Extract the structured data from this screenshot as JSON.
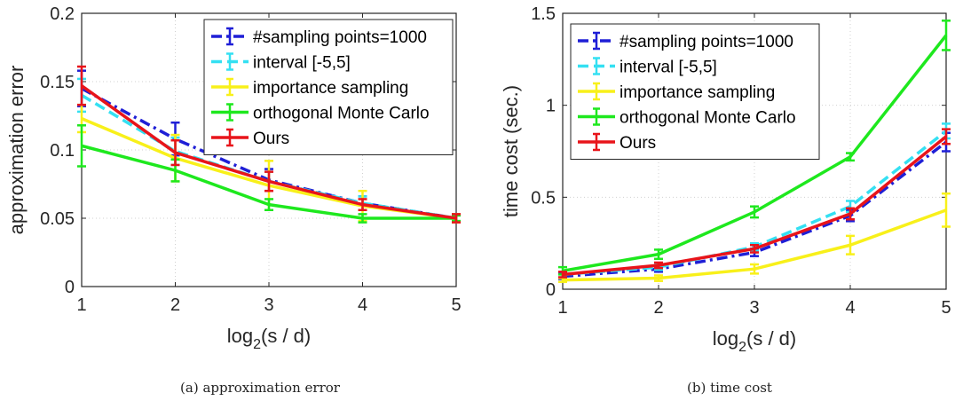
{
  "chart_data": [
    {
      "type": "line",
      "xlabel_base": "log",
      "xlabel_sub": "2",
      "xlabel_rest": "(s / d)",
      "ylabel": "approximation error",
      "caption": "(a)  approximation error",
      "x": [
        1,
        2,
        3,
        4,
        5
      ],
      "xlim": [
        1,
        5
      ],
      "ylim": [
        0,
        0.2
      ],
      "xticks": [
        "1",
        "2",
        "3",
        "4",
        "5"
      ],
      "yticks": [
        "0",
        "0.05",
        "0.1",
        "0.15",
        "0.2"
      ],
      "grid": true,
      "legend_position": "top-right",
      "series": [
        {
          "name": "#sampling points=1000",
          "color": "#1f1fd6",
          "dash": "dashdot",
          "values": [
            0.145,
            0.108,
            0.078,
            0.061,
            0.05
          ],
          "err": [
            0.013,
            0.012,
            0.008,
            0.005,
            0.003
          ]
        },
        {
          "name": "interval [-5,5]",
          "color": "#34e0f2",
          "dash": "dash",
          "values": [
            0.14,
            0.099,
            0.077,
            0.061,
            0.05
          ],
          "err": [
            0.012,
            0.01,
            0.007,
            0.005,
            0.003
          ]
        },
        {
          "name": "importance sampling",
          "color": "#f8f01a",
          "dash": "solid",
          "values": [
            0.123,
            0.094,
            0.074,
            0.059,
            0.05
          ],
          "err": [
            0.01,
            0.017,
            0.018,
            0.011,
            0.003
          ]
        },
        {
          "name": "orthogonal Monte Carlo",
          "color": "#1ee81e",
          "dash": "solid",
          "values": [
            0.103,
            0.085,
            0.06,
            0.05,
            0.05
          ],
          "err": [
            0.015,
            0.008,
            0.004,
            0.003,
            0.002
          ]
        },
        {
          "name": "Ours",
          "color": "#e8141a",
          "dash": "solid",
          "values": [
            0.147,
            0.098,
            0.077,
            0.06,
            0.05
          ],
          "err": [
            0.014,
            0.009,
            0.007,
            0.004,
            0.003
          ]
        }
      ]
    },
    {
      "type": "line",
      "xlabel_base": "log",
      "xlabel_sub": "2",
      "xlabel_rest": "(s / d)",
      "ylabel": "time cost (sec.)",
      "caption": "(b)  time cost",
      "x": [
        1,
        2,
        3,
        4,
        5
      ],
      "xlim": [
        1,
        5
      ],
      "ylim": [
        0,
        1.5
      ],
      "xticks": [
        "1",
        "2",
        "3",
        "4",
        "5"
      ],
      "yticks": [
        "0",
        "0.5",
        "1",
        "1.5"
      ],
      "grid": true,
      "legend_position": "top-left",
      "series": [
        {
          "name": "#sampling points=1000",
          "color": "#1f1fd6",
          "dash": "dashdot",
          "values": [
            0.07,
            0.11,
            0.2,
            0.4,
            0.8
          ],
          "err": [
            0.015,
            0.015,
            0.02,
            0.03,
            0.05
          ]
        },
        {
          "name": "interval [-5,5]",
          "color": "#34e0f2",
          "dash": "dash",
          "values": [
            0.08,
            0.12,
            0.23,
            0.45,
            0.86
          ],
          "err": [
            0.015,
            0.015,
            0.02,
            0.03,
            0.04
          ]
        },
        {
          "name": "importance sampling",
          "color": "#f8f01a",
          "dash": "solid",
          "values": [
            0.05,
            0.06,
            0.11,
            0.24,
            0.43
          ],
          "err": [
            0.01,
            0.015,
            0.025,
            0.05,
            0.09
          ]
        },
        {
          "name": "orthogonal Monte Carlo",
          "color": "#1ee81e",
          "dash": "solid",
          "values": [
            0.1,
            0.19,
            0.42,
            0.72,
            1.38
          ],
          "err": [
            0.02,
            0.025,
            0.03,
            0.02,
            0.08
          ]
        },
        {
          "name": "Ours",
          "color": "#e8141a",
          "dash": "solid",
          "values": [
            0.08,
            0.13,
            0.22,
            0.41,
            0.83
          ],
          "err": [
            0.015,
            0.015,
            0.02,
            0.03,
            0.04
          ]
        }
      ]
    }
  ]
}
